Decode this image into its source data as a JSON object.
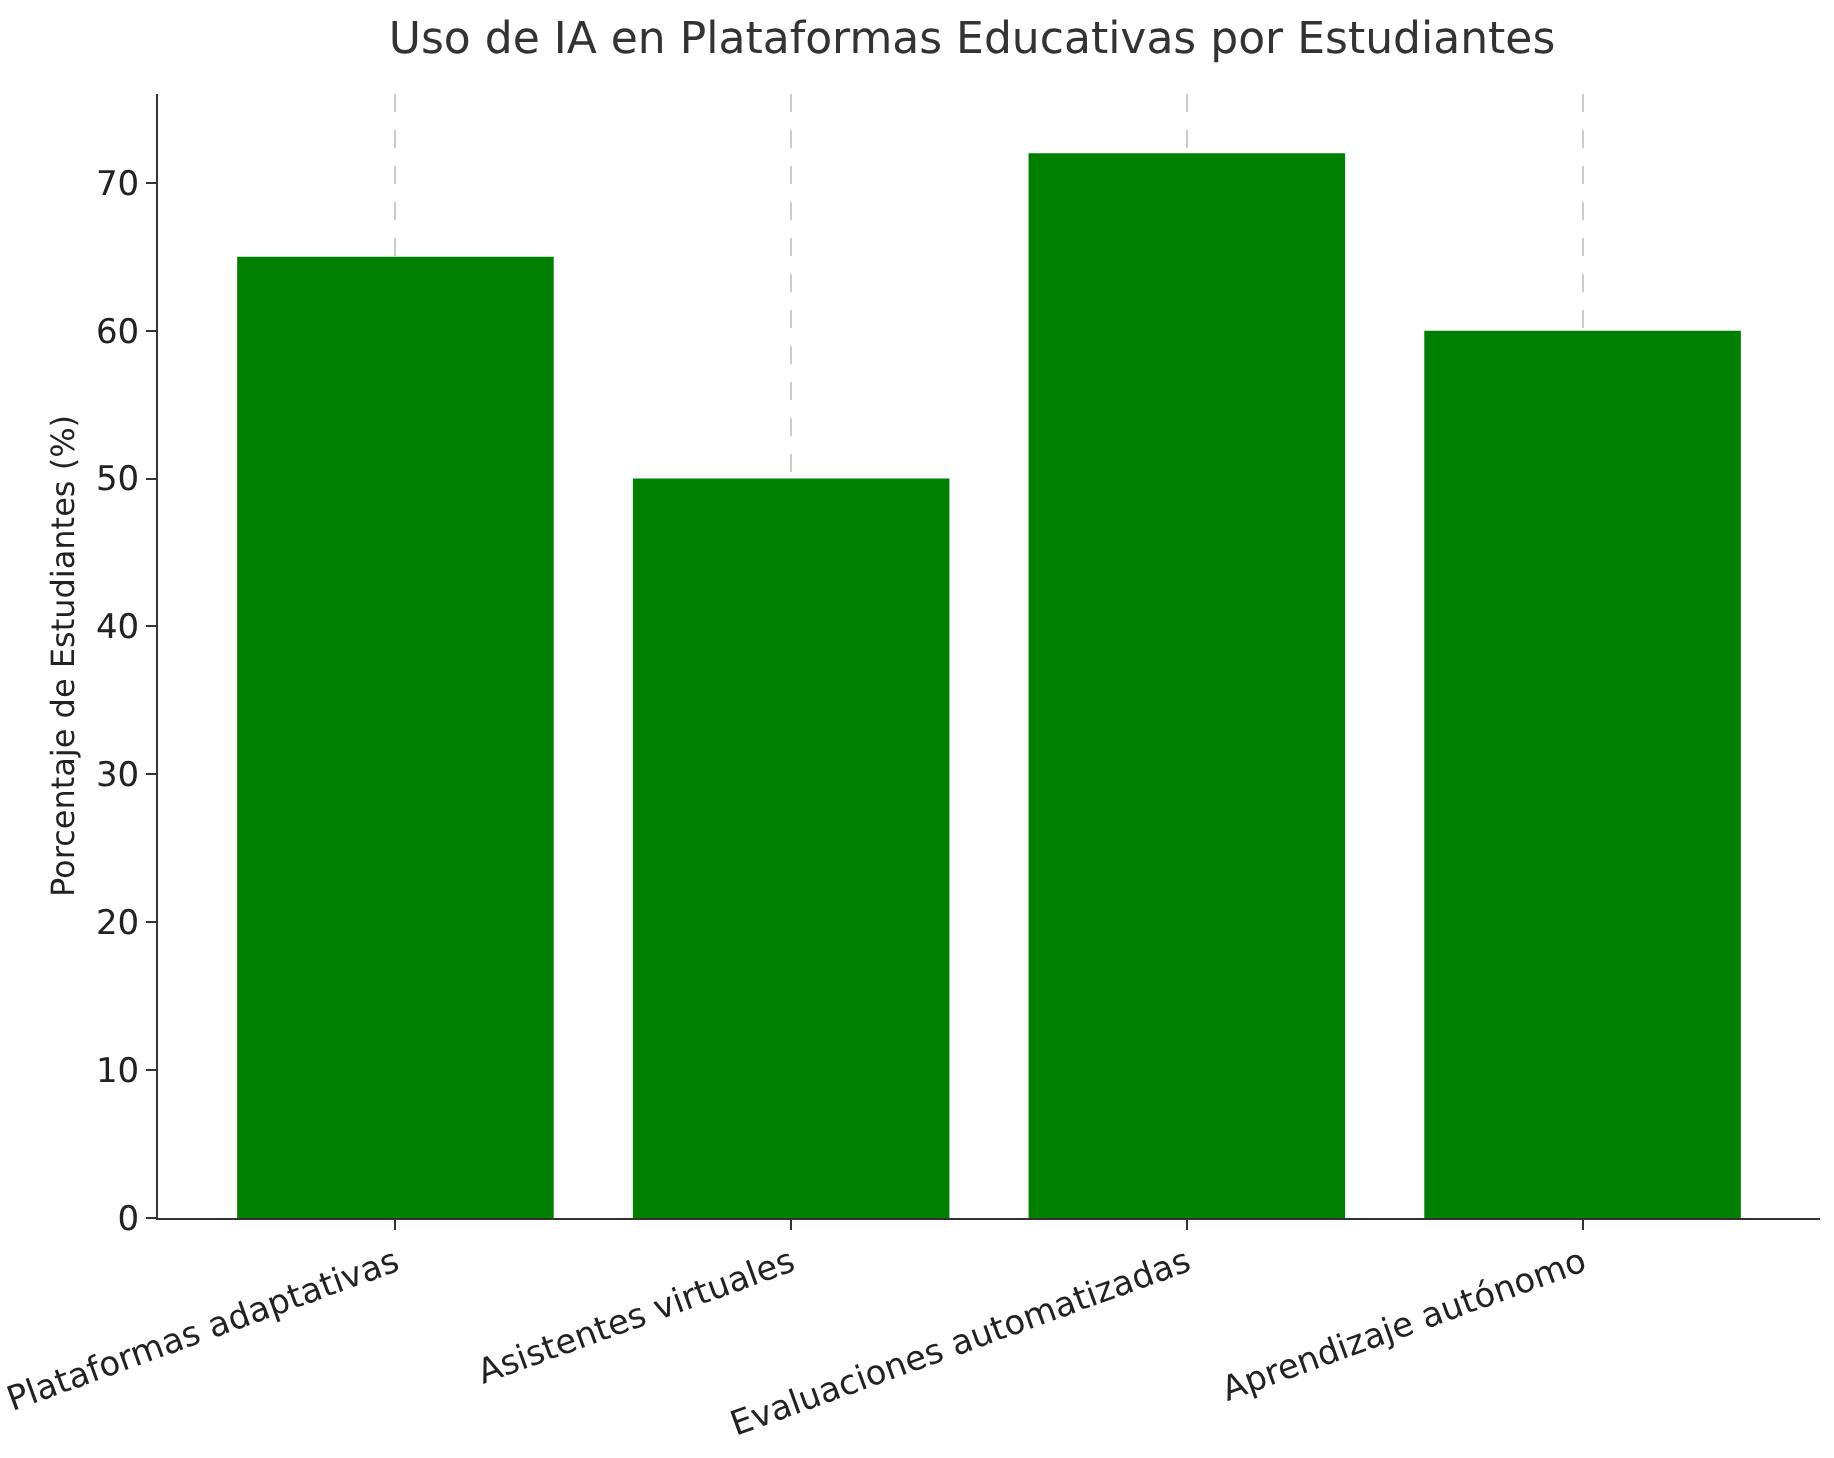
{
  "chart_data": {
    "type": "bar",
    "title": "Uso de IA en Plataformas Educativas por Estudiantes",
    "ylabel": "Porcentaje de Estudiantes (%)",
    "categories": [
      "Plataformas adaptativas",
      "Asistentes virtuales",
      "Evaluaciones automatizadas",
      "Aprendizaje autónomo"
    ],
    "values": [
      65,
      50,
      72,
      60
    ],
    "color": "#008000",
    "ylim": [
      0,
      76
    ],
    "yticks": [
      0,
      10,
      20,
      30,
      40,
      50,
      60,
      70
    ],
    "grid": "x"
  }
}
